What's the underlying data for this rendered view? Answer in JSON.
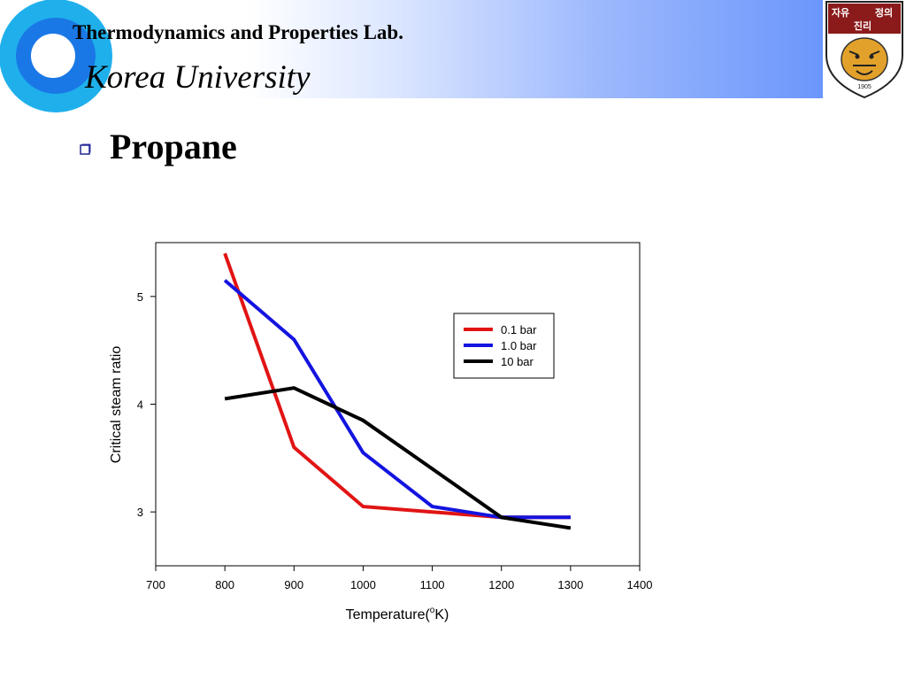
{
  "header": {
    "lab_name": "Thermodynamics and Properties Lab.",
    "university": "Korea University",
    "crest_motto": [
      "자유",
      "정의",
      "진리"
    ],
    "crest_year": "1905",
    "colors": {
      "band_end": "#6b96fb",
      "ring": "#1ea8e8",
      "crest": "#8b1a1a"
    }
  },
  "slide": {
    "title": "Propane",
    "bullet_icon": "hollow-square-bullet-icon"
  },
  "chart_data": {
    "type": "line",
    "xlabel": "Temperature(oK)",
    "xlabel_parts": {
      "pre": "Temperature(",
      "sup": "o",
      "post": "K)"
    },
    "ylabel": "Critical steam ratio",
    "xlim": [
      700,
      1400
    ],
    "ylim": [
      2.5,
      5.5
    ],
    "xticks": [
      700,
      800,
      900,
      1000,
      1100,
      1200,
      1300,
      1400
    ],
    "yticks": [
      3,
      4,
      5
    ],
    "grid": false,
    "legend_position": "top-right",
    "series": [
      {
        "name": "0.1 bar",
        "color": "#e11414",
        "x": [
          800,
          900,
          1000,
          1100,
          1200,
          1300
        ],
        "y": [
          5.4,
          3.6,
          3.05,
          3.0,
          2.95,
          2.95
        ]
      },
      {
        "name": "1.0 bar",
        "color": "#1414e0",
        "x": [
          800,
          900,
          1000,
          1100,
          1200,
          1300
        ],
        "y": [
          5.15,
          4.6,
          3.55,
          3.05,
          2.95,
          2.95
        ]
      },
      {
        "name": "10 bar",
        "color": "#000000",
        "x": [
          800,
          900,
          1000,
          1100,
          1200,
          1300
        ],
        "y": [
          4.05,
          4.15,
          3.85,
          3.4,
          2.95,
          2.85
        ]
      }
    ]
  }
}
